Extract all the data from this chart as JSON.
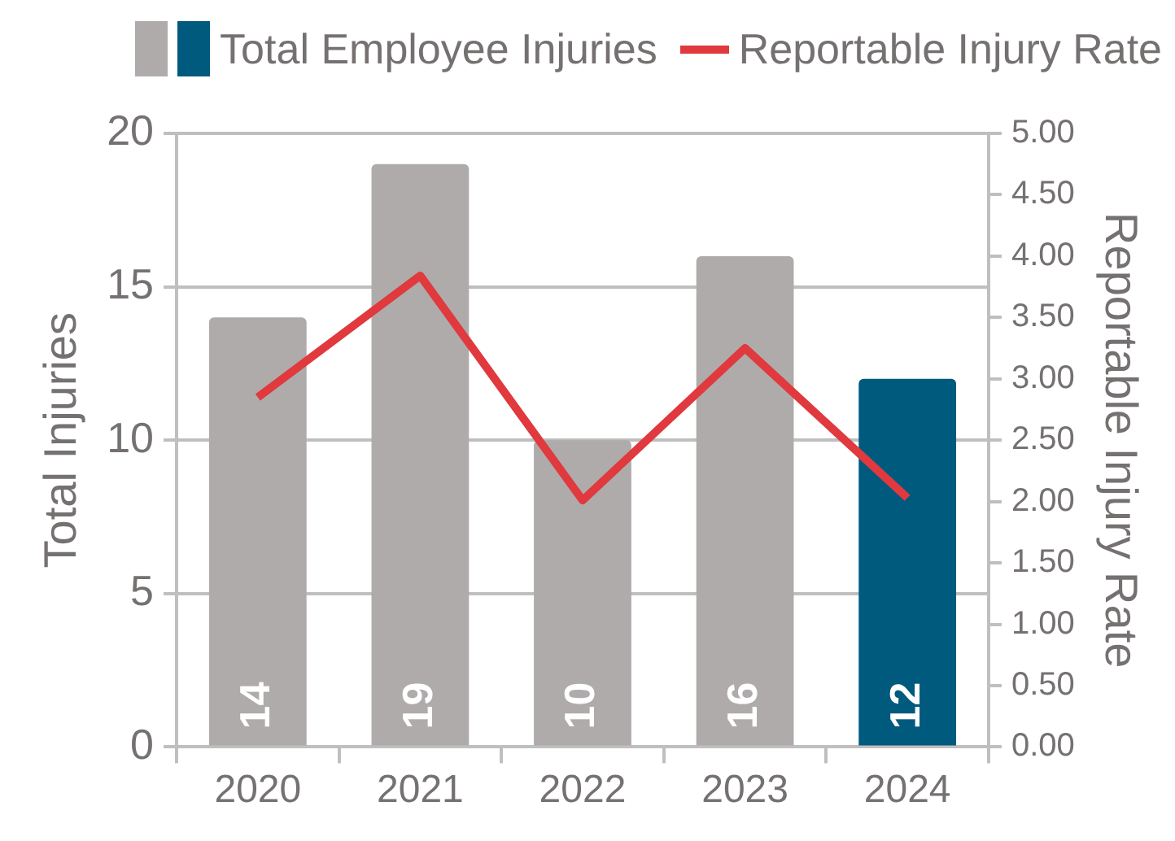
{
  "chart_data": {
    "type": "bar",
    "categories": [
      "2020",
      "2021",
      "2022",
      "2023",
      "2024"
    ],
    "ylabel": "Total Injuries",
    "y2label": "Reportable Injury Rate",
    "ylim": [
      0,
      20
    ],
    "yticks": [
      0,
      5,
      10,
      15,
      20
    ],
    "y2lim": [
      0,
      5
    ],
    "y2ticks": [
      {
        "value": 0,
        "label": "0.00"
      },
      {
        "value": 0.5,
        "label": "0.50"
      },
      {
        "value": 1,
        "label": "1.00"
      },
      {
        "value": 1.5,
        "label": "1.50"
      },
      {
        "value": 2,
        "label": "2.00"
      },
      {
        "value": 2.5,
        "label": "2.50"
      },
      {
        "value": 3,
        "label": "3.00"
      },
      {
        "value": 3.5,
        "label": "3.50"
      },
      {
        "value": 4,
        "label": "4.00"
      },
      {
        "value": 4.5,
        "label": "4.50"
      },
      {
        "value": 5,
        "label": "5.00"
      }
    ],
    "grid": "y",
    "legend": "top",
    "series": [
      {
        "name": "Total Employee Injuries",
        "colors": [
          "#afabab",
          "#afabab",
          "#afabab",
          "#afabab",
          "#005a7e"
        ],
        "values": [
          14,
          19,
          10,
          16,
          12
        ],
        "value_labels": [
          "14",
          "19",
          "10",
          "16",
          "12"
        ]
      },
      {
        "name": "Reportable Injury Rate",
        "type": "line",
        "axis": "y2",
        "color": "#e0393e",
        "values": [
          2.85,
          3.84,
          2.01,
          3.25,
          2.03
        ]
      }
    ]
  }
}
